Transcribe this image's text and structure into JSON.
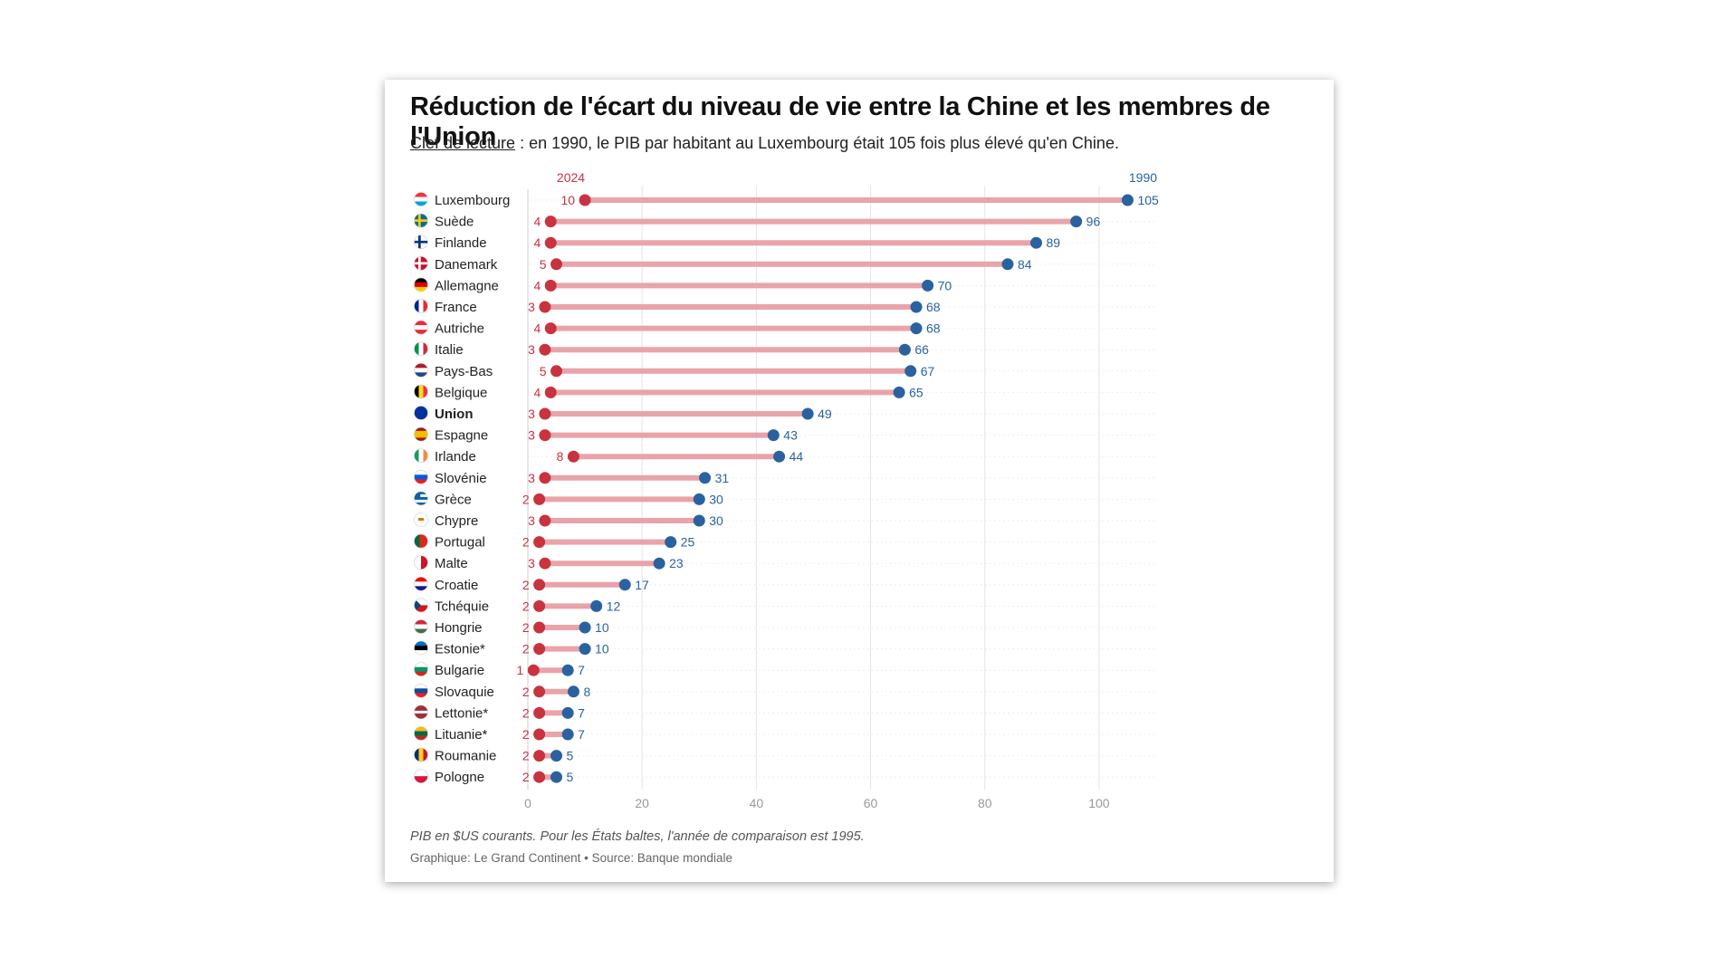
{
  "header": {
    "title": "Réduction de l'écart du niveau de vie entre la Chine et les membres de l'Union",
    "subtitle_key": "Clef de lecture",
    "subtitle_rest": " : en 1990, le PIB par habitant au Luxembourg était 105 fois plus élevé qu'en Chine."
  },
  "footer": {
    "footnote": "PIB en $US courants. Pour les États baltes, l'année de comparaison est 1995.",
    "credit": "Graphique: Le Grand Continent • Source: Banque mondiale"
  },
  "colors": {
    "year2024": "#c8333f",
    "year1990": "#2a62a0",
    "connector": "#e9a3aa"
  },
  "chart_data": {
    "type": "dumbbell",
    "categories": [
      "Luxembourg",
      "Suède",
      "Finlande",
      "Danemark",
      "Allemagne",
      "France",
      "Autriche",
      "Italie",
      "Pays-Bas",
      "Belgique",
      "Union",
      "Espagne",
      "Irlande",
      "Slovénie",
      "Grèce",
      "Chypre",
      "Portugal",
      "Malte",
      "Croatie",
      "Tchéquie",
      "Hongrie",
      "Estonie*",
      "Bulgarie",
      "Slovaquie",
      "Lettonie*",
      "Lituanie*",
      "Roumanie",
      "Pologne"
    ],
    "highlight": "Union",
    "series": [
      {
        "name": "2024",
        "values": [
          10,
          4,
          4,
          5,
          4,
          3,
          4,
          3,
          5,
          4,
          3,
          3,
          8,
          3,
          2,
          3,
          2,
          3,
          2,
          2,
          2,
          2,
          1,
          2,
          2,
          2,
          2,
          2
        ]
      },
      {
        "name": "1990",
        "values": [
          105,
          96,
          89,
          84,
          70,
          68,
          68,
          66,
          67,
          65,
          49,
          43,
          44,
          31,
          30,
          30,
          25,
          23,
          17,
          12,
          10,
          10,
          7,
          8,
          7,
          7,
          5,
          5
        ]
      }
    ],
    "x_ticks": [
      0,
      20,
      40,
      60,
      80,
      100
    ],
    "xlim": [
      0,
      110
    ],
    "grid": true,
    "flag_icons": [
      "luxembourg-flag-icon",
      "sweden-flag-icon",
      "finland-flag-icon",
      "denmark-flag-icon",
      "germany-flag-icon",
      "france-flag-icon",
      "austria-flag-icon",
      "italy-flag-icon",
      "netherlands-flag-icon",
      "belgium-flag-icon",
      "eu-flag-icon",
      "spain-flag-icon",
      "ireland-flag-icon",
      "slovenia-flag-icon",
      "greece-flag-icon",
      "cyprus-flag-icon",
      "portugal-flag-icon",
      "malta-flag-icon",
      "croatia-flag-icon",
      "czechia-flag-icon",
      "hungary-flag-icon",
      "estonia-flag-icon",
      "bulgaria-flag-icon",
      "slovakia-flag-icon",
      "latvia-flag-icon",
      "lithuania-flag-icon",
      "romania-flag-icon",
      "poland-flag-icon"
    ]
  }
}
